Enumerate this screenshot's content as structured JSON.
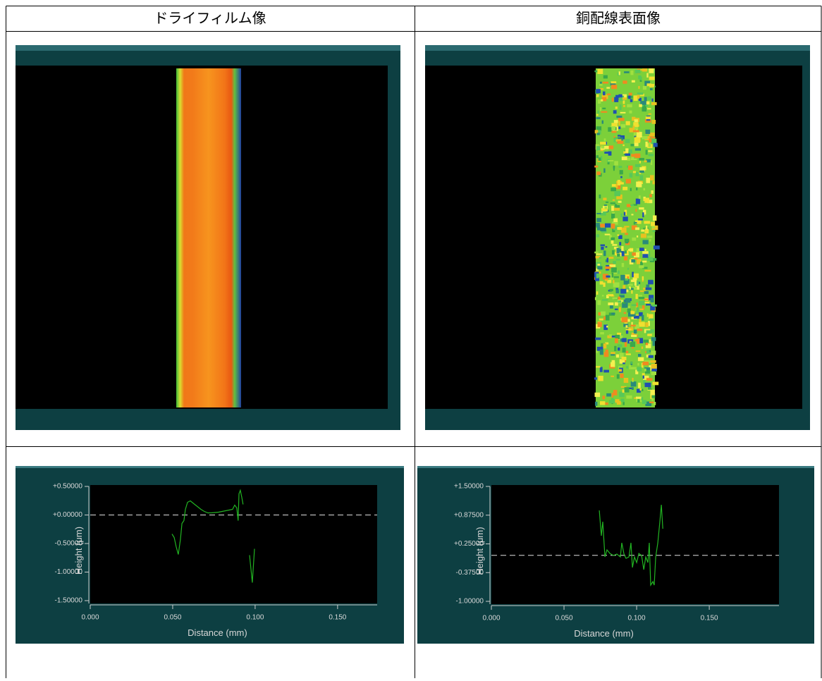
{
  "table": {
    "headers": [
      "ドライフィルム像",
      "銅配線表面像"
    ]
  },
  "chart_data": [
    {
      "type": "line",
      "x_label": "Distance (mm)",
      "y_label": "Height (μm)",
      "xlim": [
        0,
        0.174
      ],
      "ylim": [
        -1.5,
        0.5
      ],
      "xticks": [
        {
          "value": 0,
          "label": "0.000"
        },
        {
          "value": 0.05,
          "label": "0.050"
        },
        {
          "value": 0.1,
          "label": "0.100"
        },
        {
          "value": 0.15,
          "label": "0.150"
        }
      ],
      "yticks": [
        {
          "value": 0.5,
          "label": "+0.50000"
        },
        {
          "value": 0,
          "label": "+0.00000"
        },
        {
          "value": -0.5,
          "label": "-0.50000"
        },
        {
          "value": -1,
          "label": "-1.00000"
        },
        {
          "value": -1.5,
          "label": "-1.50000"
        }
      ],
      "reference_line": 0,
      "color": "#22b422",
      "x": [
        0.0496,
        0.0509,
        0.0521,
        0.0534,
        0.0547,
        0.0556,
        0.0568,
        0.0577,
        0.059,
        0.0607,
        0.0628,
        0.065,
        0.0671,
        0.0692,
        0.0714,
        0.0735,
        0.0778,
        0.0821,
        0.0863,
        0.0876,
        0.0889,
        0.0897,
        0.0902,
        0.091,
        0.0919,
        0.0927,
        null,
        0.0966,
        0.0983,
        0.0996
      ],
      "values": [
        -0.333,
        -0.395,
        -0.556,
        -0.691,
        -0.432,
        -0.148,
        -0.099,
        0.099,
        0.222,
        0.247,
        0.198,
        0.148,
        0.099,
        0.062,
        0.037,
        0.037,
        0.049,
        0.074,
        0.099,
        0.173,
        0.123,
        -0.099,
        0.37,
        0.432,
        0.309,
        0.185,
        null,
        -0.704,
        -1.185,
        -0.593
      ]
    },
    {
      "type": "line",
      "x_label": "Distance (mm)",
      "y_label": "Height (μm)",
      "xlim": [
        0,
        0.198
      ],
      "ylim": [
        -1,
        1.5
      ],
      "xticks": [
        {
          "value": 0,
          "label": "0.000"
        },
        {
          "value": 0.05,
          "label": "0.050"
        },
        {
          "value": 0.1,
          "label": "0.100"
        },
        {
          "value": 0.15,
          "label": "0.150"
        }
      ],
      "yticks": [
        {
          "value": 1.5,
          "label": "+1.50000"
        },
        {
          "value": 0.875,
          "label": "+0.87500"
        },
        {
          "value": 0.25,
          "label": "+0.25000"
        },
        {
          "value": -0.375,
          "label": "-0.37500"
        },
        {
          "value": -1,
          "label": "-1.00000"
        }
      ],
      "reference_line": 0,
      "color": "#22b422",
      "x": [
        0.0743,
        0.0757,
        0.0767,
        0.0782,
        0.0796,
        0.0816,
        0.084,
        0.0864,
        0.0888,
        0.0898,
        0.0913,
        0.0927,
        0.0947,
        0.0961,
        0.0971,
        0.0985,
        0.1,
        0.1015,
        0.1034,
        0.1049,
        0.1063,
        0.1078,
        0.1087,
        0.1097,
        0.1112,
        0.1121,
        0.1131,
        0.1146,
        0.116,
        0.117,
        0.118
      ],
      "values": [
        0.979,
        0.426,
        0.733,
        -0.034,
        0.12,
        0.043,
        -0.003,
        0.028,
        -0.034,
        0.273,
        0.028,
        -0.064,
        -0.034,
        0.273,
        -0.264,
        -0.034,
        -0.156,
        0.043,
        -0.003,
        -0.31,
        -0.034,
        -0.156,
        0.273,
        -0.647,
        -0.571,
        -0.647,
        -0.034,
        0.273,
        0.733,
        1.101,
        0.58
      ]
    }
  ]
}
